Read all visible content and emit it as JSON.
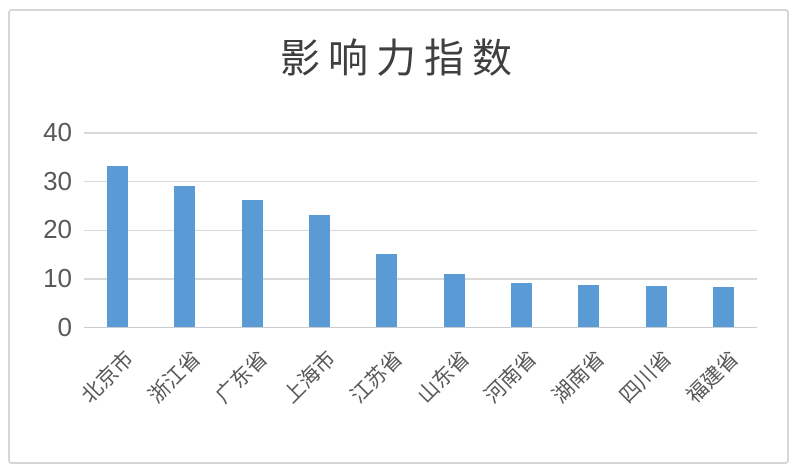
{
  "chart_data": {
    "type": "bar",
    "title": "影响力指数",
    "categories": [
      "北京市",
      "浙江省",
      "广东省",
      "上海市",
      "江苏省",
      "山东省",
      "河南省",
      "湖南省",
      "四川省",
      "福建省"
    ],
    "values": [
      33.3,
      29,
      26.3,
      23.2,
      15.1,
      11,
      9.2,
      8.7,
      8.5,
      8.3
    ],
    "xlabel": "",
    "ylabel": "",
    "ylim": [
      0,
      40
    ],
    "yticks": [
      0,
      10,
      20,
      30,
      40
    ],
    "grid": true,
    "legend": "none",
    "bar_color": "#5B9BD5",
    "gridline_color": "#D9D9D9",
    "baseline_color": "#C9CDD1",
    "tick_label_color": "#595959",
    "title_color": "#3F3F3F",
    "frame_border_color": "#D6D6D6",
    "background_color": "#FFFFFF"
  }
}
